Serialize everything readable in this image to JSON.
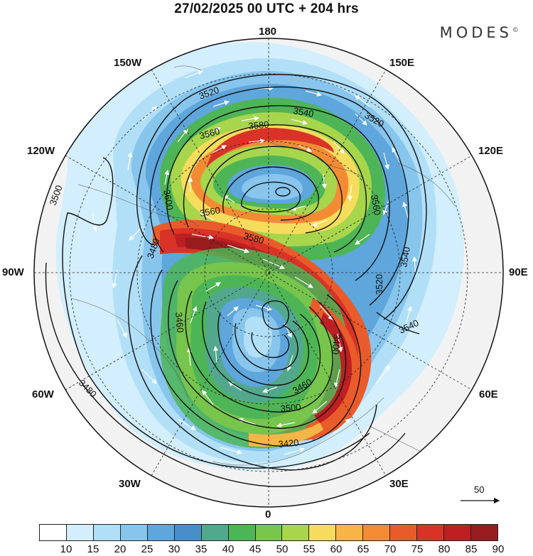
{
  "title": "27/02/2025  00 UTC  + 204 hrs",
  "brand": {
    "name": "MODES",
    "mark": "©"
  },
  "longitude_labels": {
    "top": "180",
    "bottom": "0",
    "left": "90W",
    "right": "90E",
    "upper_left_1": "150W",
    "upper_left_2": "120W",
    "lower_left_1": "60W",
    "lower_left_2": "30W",
    "upper_right_1": "150E",
    "upper_right_2": "120E",
    "lower_right_1": "60E",
    "lower_right_2": "30E"
  },
  "contour_labels": [
    "3520",
    "3540",
    "3520",
    "3560",
    "3580",
    "3560",
    "3580",
    "3600",
    "3500",
    "3540",
    "3480",
    "3560",
    "3540",
    "3520",
    "3460",
    "3400",
    "3480",
    "3500",
    "3420",
    "3460"
  ],
  "colorbar": {
    "ticks": [
      "10",
      "15",
      "20",
      "25",
      "30",
      "35",
      "40",
      "45",
      "50",
      "55",
      "60",
      "65",
      "70",
      "75",
      "80",
      "85",
      "90"
    ],
    "colors": [
      "#ffffff",
      "#d3eefc",
      "#b1dff7",
      "#87c5ec",
      "#5ea6dc",
      "#4a8ec9",
      "#52a88d",
      "#4eb556",
      "#77c54c",
      "#a7d54c",
      "#f6dc5c",
      "#f7b548",
      "#f38b35",
      "#ea5b2b",
      "#d93327",
      "#bd1f23",
      "#981b1e"
    ]
  },
  "vector_reference": {
    "label": "50"
  }
}
